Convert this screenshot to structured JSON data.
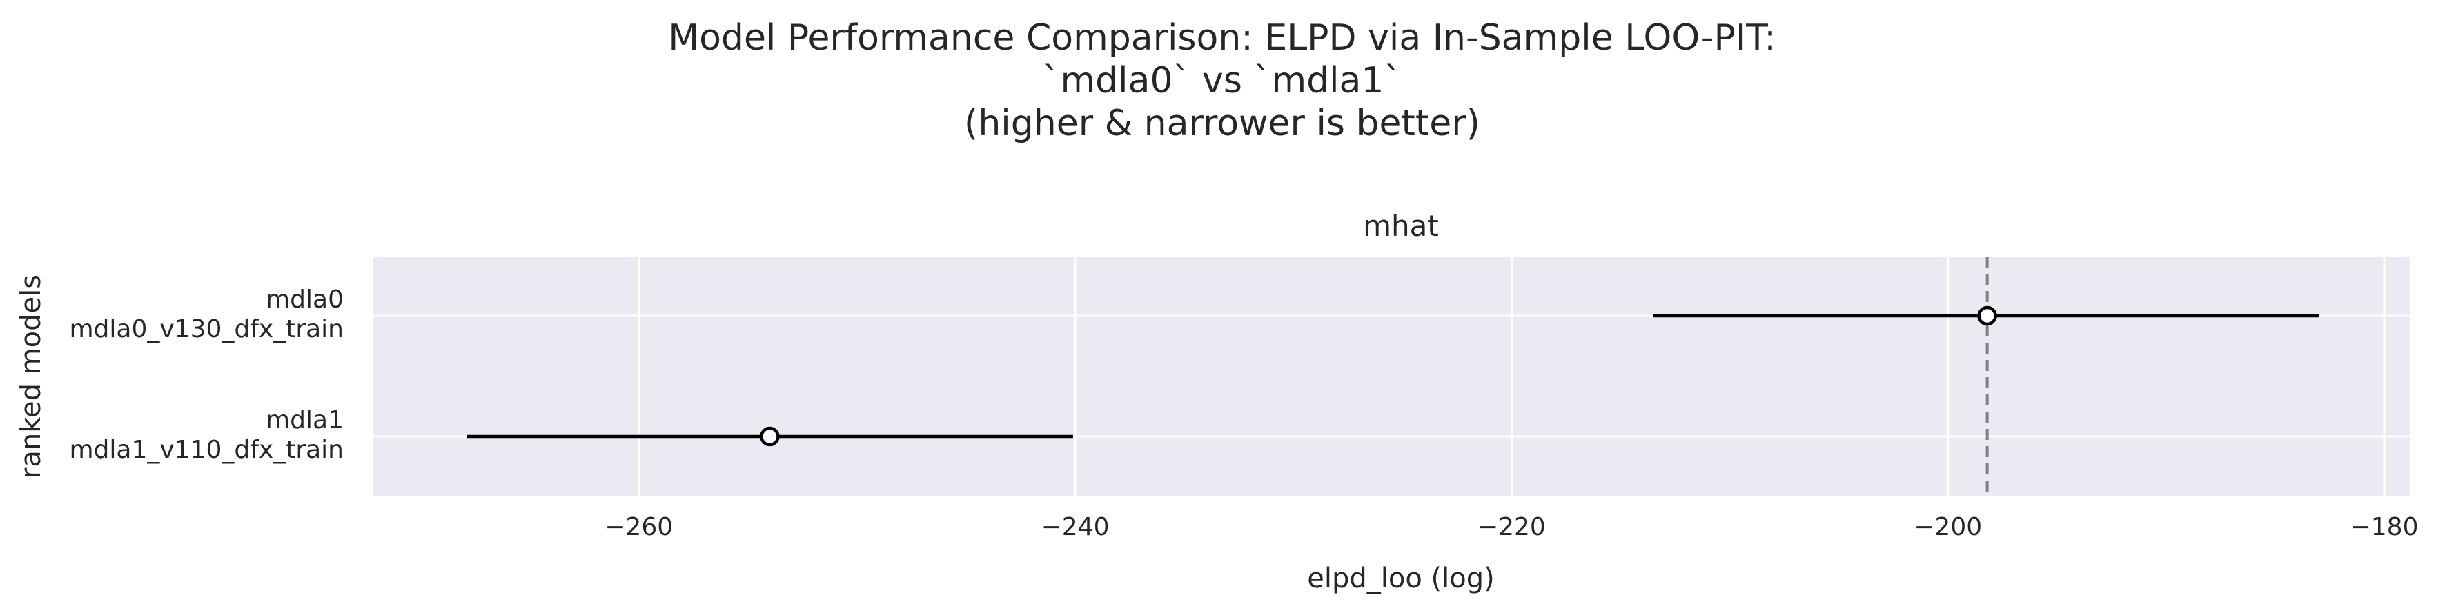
{
  "chart_data": {
    "type": "forest",
    "title_lines": [
      "Model Performance Comparison: ELPD via In-Sample LOO-PIT:",
      "`mdla0` vs `mdla1`",
      "(higher & narrower is better)"
    ],
    "subplot_title": "mhat",
    "xlabel": "elpd_loo (log)",
    "ylabel": "ranked models",
    "xlim": [
      -272.2,
      -178.8
    ],
    "xticks": [
      -260,
      -240,
      -220,
      -200,
      -180
    ],
    "xtick_labels": [
      "−260",
      "−240",
      "−220",
      "−200",
      "−180"
    ],
    "reference_line": -198.2,
    "models": [
      {
        "label_top": "mdla0",
        "label_bottom": "mdla0_v130_dfx_train",
        "elpd": -198.2,
        "lower": -213.5,
        "upper": -183.0
      },
      {
        "label_top": "mdla1",
        "label_bottom": "mdla1_v110_dfx_train",
        "elpd": -254.0,
        "lower": -267.9,
        "upper": -240.1
      }
    ],
    "grid": true,
    "colors": {
      "background": "#eaeaf2",
      "grid": "#ffffff",
      "interval": "#000000",
      "marker_fill": "#ffffff",
      "marker_edge": "#000000",
      "reference_line": "#808080",
      "text": "#262626"
    }
  }
}
